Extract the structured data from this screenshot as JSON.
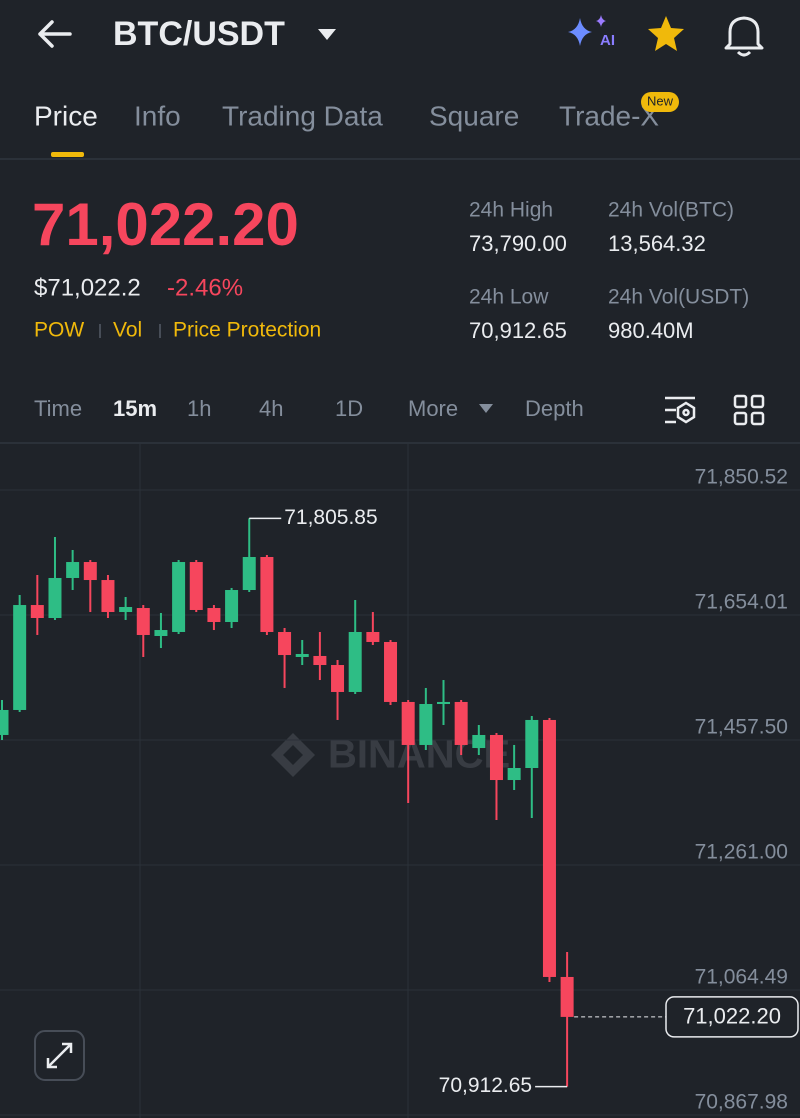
{
  "header": {
    "pair": "BTC/USDT",
    "ai_badge": "AI"
  },
  "tabs": [
    "Price",
    "Info",
    "Trading Data",
    "Square",
    "Trade-X"
  ],
  "tab_badge": "New",
  "price": {
    "last": "71,022.20",
    "usd": "$71,022.2",
    "change": "-2.46%",
    "tags": [
      "POW",
      "Vol",
      "Price Protection"
    ]
  },
  "stats": [
    {
      "label": "24h High",
      "value": "73,790.00"
    },
    {
      "label": "24h Vol(BTC)",
      "value": "13,564.32"
    },
    {
      "label": "24h Low",
      "value": "70,912.65"
    },
    {
      "label": "24h Vol(USDT)",
      "value": "980.40M"
    }
  ],
  "timeframes": [
    "Time",
    "15m",
    "1h",
    "4h",
    "1D",
    "More",
    "Depth"
  ],
  "chart_data": {
    "type": "candlestick",
    "watermark": "BINANCE",
    "up_color": "#2ebd85",
    "down_color": "#f6465d",
    "open": [
      71465.4,
      71504.7,
      71669.7,
      71649.3,
      71712.2,
      71737.3,
      71709.0,
      71658.7,
      71665.0,
      71621.0,
      71627.3,
      71737.3,
      71665.0,
      71643.0,
      71693.3,
      71745.2,
      71627.3,
      71588.0,
      71589.6,
      71575.4,
      71533.0,
      71627.3,
      71611.6,
      71517.3,
      71449.7,
      71514.1,
      71517.3,
      71444.9,
      71465.4,
      71394.6,
      71413.5,
      71489.0,
      71085.0
    ],
    "high": [
      71520.4,
      71685.5,
      71716.9,
      71776.6,
      71756.2,
      71740.5,
      71716.9,
      71682.3,
      71669.7,
      71657.2,
      71740.5,
      71740.5,
      71669.7,
      71696.5,
      71805.85,
      71748.3,
      71633.6,
      71614.7,
      71627.3,
      71583.3,
      71677.6,
      71658.7,
      71614.7,
      71520.4,
      71539.3,
      71551.8,
      71520.4,
      71481.1,
      71468.5,
      71449.7,
      71495.2,
      71492.1,
      71124.3
    ],
    "low": [
      71457.5,
      71501.5,
      71622.6,
      71646.2,
      71693.3,
      71658.7,
      71649.3,
      71646.2,
      71588.0,
      71602.1,
      71624.2,
      71658.7,
      71630.4,
      71633.6,
      71690.2,
      71622.6,
      71539.3,
      71575.4,
      71551.8,
      71489.0,
      71529.8,
      71606.9,
      71512.5,
      71358.5,
      71441.8,
      71481.1,
      71433.9,
      71433.9,
      71331.8,
      71378.9,
      71334.9,
      71077.1,
      70912.65
    ],
    "close": [
      71504.7,
      71669.7,
      71649.3,
      71712.2,
      71737.3,
      71709.0,
      71658.7,
      71666.6,
      71622.6,
      71630.4,
      71737.3,
      71661.9,
      71643.0,
      71693.3,
      71745.2,
      71627.3,
      71591.1,
      71592.7,
      71575.4,
      71533.0,
      71627.3,
      71611.6,
      71517.3,
      71449.7,
      71514.1,
      71517.3,
      71449.7,
      71465.4,
      71394.6,
      71413.5,
      71489.0,
      71085.0,
      71022.2
    ],
    "ylim": [
      70863.3,
      71924.4
    ],
    "yticks": [
      {
        "value": 71850.52,
        "label": "71,850.52"
      },
      {
        "value": 71654.01,
        "label": "71,654.01"
      },
      {
        "value": 71457.5,
        "label": "71,457.50"
      },
      {
        "value": 71261.0,
        "label": "71,261.00"
      },
      {
        "value": 71064.49,
        "label": "71,064.49"
      },
      {
        "value": 70867.98,
        "label": "70,867.98"
      }
    ],
    "annotations": [
      {
        "value": 71805.85,
        "label": "71,805.85"
      },
      {
        "value": 70912.65,
        "label": "70,912.65"
      }
    ],
    "last_price": {
      "value": 71022.2,
      "label": "71,022.20"
    },
    "grid": true
  }
}
